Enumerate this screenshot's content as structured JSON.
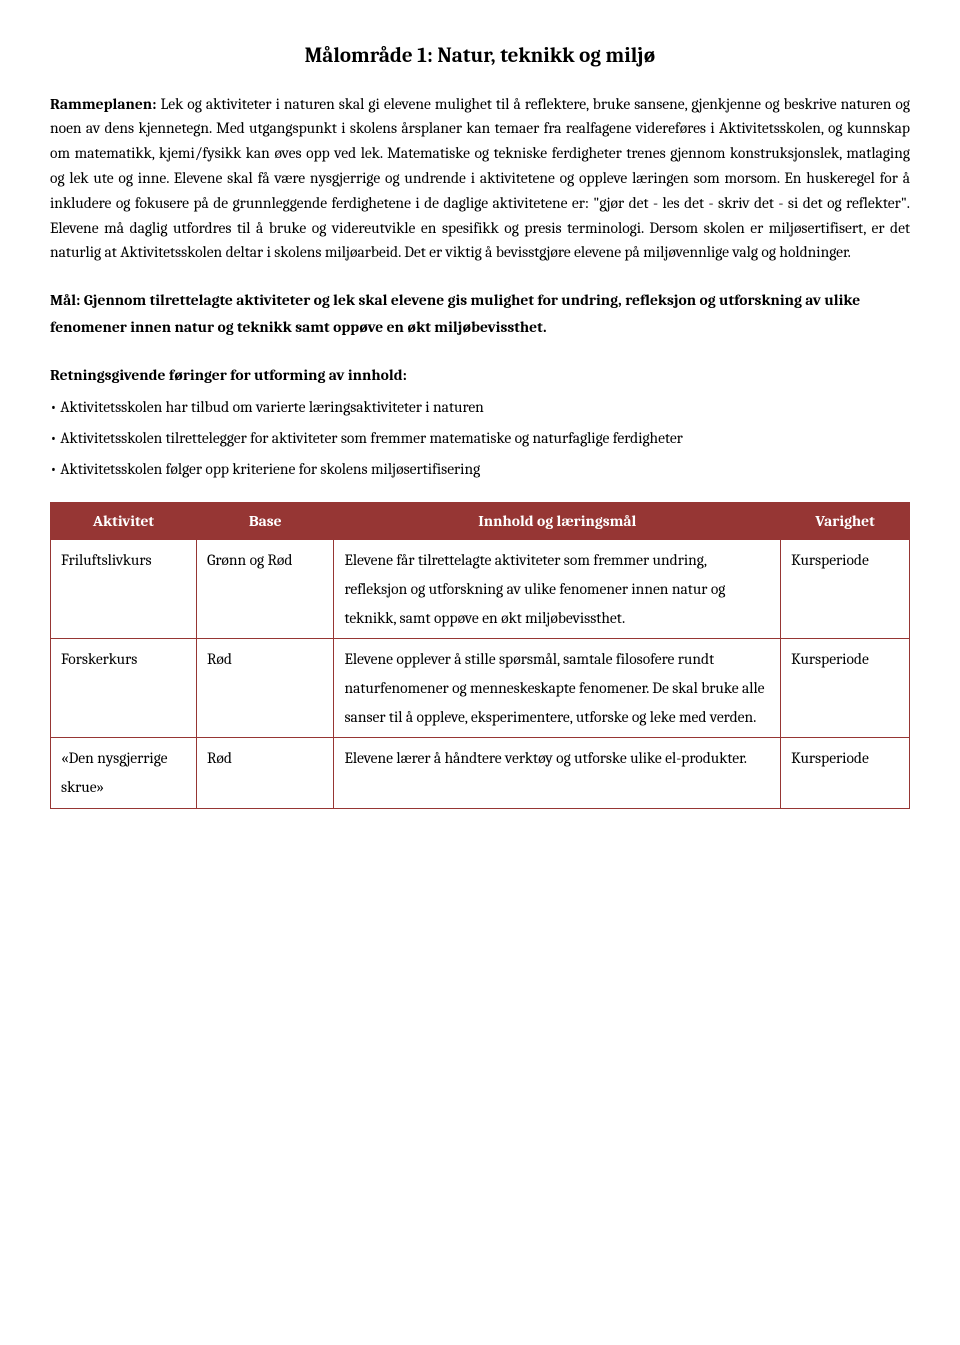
{
  "title": "Målområde 1: Natur, teknikk og miljø",
  "intro": {
    "lead_label": "Rammeplanen:",
    "text": " Lek og aktiviteter i naturen skal gi elevene mulighet til å reflektere, bruke sansene, gjenkjenne og beskrive naturen og noen av dens kjennetegn. Med utgangspunkt i skolens årsplaner kan temaer fra realfagene videreføres i Aktivitetsskolen, og kunnskap om matematikk, kjemi/fysikk kan øves opp ved lek. Matematiske og tekniske ferdigheter trenes gjennom konstruksjonslek, matlaging og lek ute og inne. Elevene skal få være nysgjerrige og undrende i aktivitetene og oppleve læringen som morsom. En huskeregel for å inkludere og fokusere på de grunnleggende ferdighetene i de daglige aktivitetene er: \"gjør det - les det - skriv det - si det og reflekter\". Elevene må daglig utfordres til å bruke og videreutvikle en spesifikk og presis terminologi. Dersom skolen er miljøsertifisert, er det naturlig at Aktivitetsskolen deltar i skolens miljøarbeid. Det er viktig å bevisstgjøre elevene på miljøvennlige valg og holdninger."
  },
  "goal": "Mål: Gjennom tilrettelagte aktiviteter og lek skal elevene gis mulighet for undring, refleksjon og utforskning av ulike fenomener innen natur og teknikk samt oppøve en økt miljøbevissthet.",
  "guidelines": {
    "heading": "Retningsgivende føringer for utforming av innhold:",
    "items": [
      "• Aktivitetsskolen har tilbud om varierte læringsaktiviteter i naturen",
      "• Aktivitetsskolen tilrettelegger for aktiviteter som fremmer matematiske og naturfaglige ferdigheter",
      "• Aktivitetsskolen følger opp kriteriene for skolens miljøsertifisering"
    ]
  },
  "table": {
    "header_bg": "#963634",
    "header_fg": "#ffffff",
    "border_color": "#963634",
    "columns": [
      "Aktivitet",
      "Base",
      "Innhold og læringsmål",
      "Varighet"
    ],
    "rows": [
      {
        "activity": "Friluftslivkurs",
        "base": "Grønn og Rød",
        "content": "Elevene får tilrettelagte aktiviteter som fremmer undring, refleksjon og utforskning av ulike fenomener innen natur og teknikk, samt oppøve en økt miljøbevissthet.",
        "duration": "Kursperiode"
      },
      {
        "activity": "Forskerkurs",
        "base": "Rød",
        "content": "Elevene opplever å stille spørsmål, samtale filosofere rundt naturfenomener og menneskeskapte fenomener. De skal bruke alle sanser til å oppleve, eksperimentere, utforske og leke med verden.",
        "duration": "Kursperiode"
      },
      {
        "activity": "«Den nysgjerrige skrue»",
        "base": "Rød",
        "content": "Elevene lærer å håndtere verktøy og utforske ulike el-produkter.",
        "duration": "Kursperiode"
      }
    ]
  }
}
